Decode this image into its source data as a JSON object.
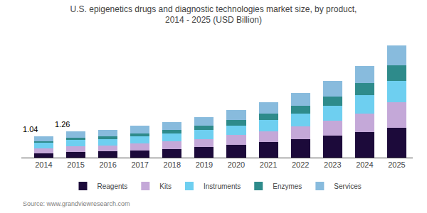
{
  "chart_data": {
    "type": "bar",
    "stacked": true,
    "title": "U.S. epigenetics drugs and diagnostic technologies market size, by product,\n2014 - 2025 (USD Billion)",
    "source": "Source: www.grandviewresearch.com",
    "categories": [
      "2014",
      "2015",
      "2016",
      "2017",
      "2018",
      "2019",
      "2020",
      "2021",
      "2022",
      "2023",
      "2024",
      "2025"
    ],
    "series": [
      {
        "name": "Reagents",
        "color": "#1c0a3a",
        "values": [
          0.22,
          0.28,
          0.3,
          0.35,
          0.42,
          0.5,
          0.62,
          0.75,
          0.9,
          1.05,
          1.22,
          1.45
        ]
      },
      {
        "name": "Kits",
        "color": "#c4a8d8",
        "values": [
          0.22,
          0.26,
          0.28,
          0.32,
          0.36,
          0.4,
          0.46,
          0.52,
          0.6,
          0.72,
          0.9,
          1.2
        ]
      },
      {
        "name": "Instruments",
        "color": "#6ecff0",
        "values": [
          0.26,
          0.3,
          0.3,
          0.34,
          0.38,
          0.42,
          0.46,
          0.55,
          0.62,
          0.72,
          0.88,
          1.05
        ]
      },
      {
        "name": "Enzymes",
        "color": "#2e8b8b",
        "values": [
          0.1,
          0.12,
          0.14,
          0.16,
          0.18,
          0.22,
          0.26,
          0.3,
          0.36,
          0.46,
          0.58,
          0.72
        ]
      },
      {
        "name": "Services",
        "color": "#88bbdd",
        "values": [
          0.24,
          0.3,
          0.32,
          0.35,
          0.38,
          0.42,
          0.48,
          0.55,
          0.62,
          0.72,
          0.82,
          0.98
        ]
      }
    ],
    "annotations": [
      {
        "x": "2014",
        "y": 1.04,
        "text": "1.04"
      },
      {
        "x": "2015",
        "y": 1.26,
        "text": "1.26"
      }
    ],
    "ylim": [
      0,
      5.8
    ],
    "tick_labels": "x",
    "grid": false,
    "legend": "bottom"
  }
}
